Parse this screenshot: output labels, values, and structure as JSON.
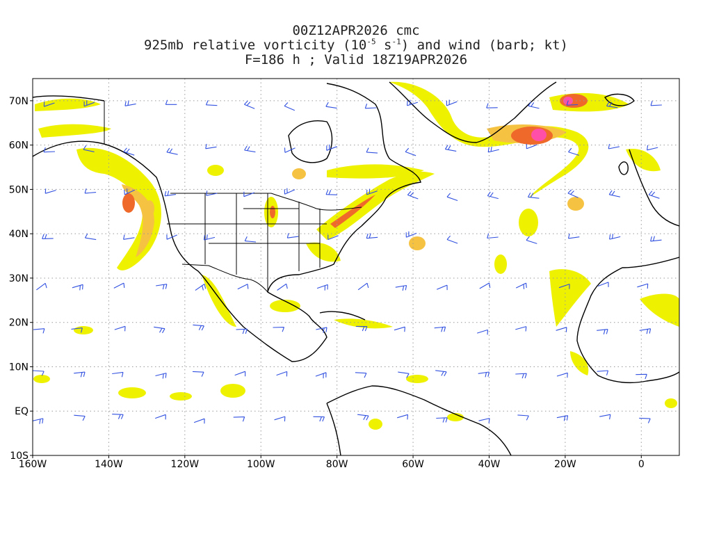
{
  "title": {
    "line1": "00Z12APR2026 cmc",
    "line2_pre": "925mb relative vorticity (10",
    "line2_exp1": "-5",
    "line2_mid": " s",
    "line2_exp2": "-1",
    "line2_post": ") and wind (barb; kt)",
    "line3": "F=186 h ; Valid 18Z19APR2026"
  },
  "axes": {
    "lat_labels": [
      "70N",
      "60N",
      "50N",
      "40N",
      "30N",
      "20N",
      "10N",
      "EQ",
      "10S"
    ],
    "lat_values": [
      70,
      60,
      50,
      40,
      30,
      20,
      10,
      0,
      -10
    ],
    "lon_labels": [
      "160W",
      "140W",
      "120W",
      "100W",
      "80W",
      "60W",
      "40W",
      "20W",
      "0"
    ],
    "lon_values": [
      -160,
      -140,
      -120,
      -100,
      -80,
      -60,
      -40,
      -20,
      0
    ],
    "lon_range": [
      -160,
      10
    ],
    "lat_range": [
      -10,
      75
    ]
  },
  "colors": {
    "coast": "#000000",
    "barb": "#3050e0",
    "grid": "#999999",
    "vort_low": "#eef200",
    "vort_mid": "#f5c242",
    "vort_high": "#ef6a2a",
    "vort_max": "#ff4fa8"
  }
}
